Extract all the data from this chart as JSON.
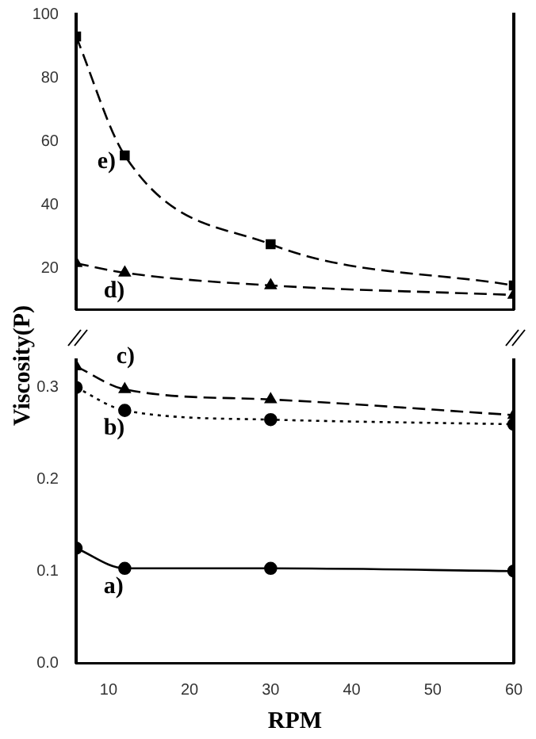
{
  "chart_data": [
    {
      "type": "line",
      "x": [
        6,
        12,
        30,
        60
      ],
      "xlim": [
        6,
        60
      ],
      "ylim": [
        7,
        100
      ],
      "yticks": [
        20,
        40,
        60,
        80,
        100
      ],
      "tick_labels": "y",
      "grid": false,
      "legend": false,
      "series": [
        {
          "name": "e)",
          "color": "#000000",
          "marker": "square",
          "line_style": "dashed",
          "values": [
            93,
            55.5,
            27.5,
            14.5
          ]
        },
        {
          "name": "d)",
          "color": "#000000",
          "marker": "triangle",
          "line_style": "dashed",
          "values": [
            21.5,
            18.5,
            14.5,
            11.5
          ]
        }
      ]
    },
    {
      "type": "line",
      "x": [
        6,
        12,
        30,
        60
      ],
      "xlim": [
        6,
        60
      ],
      "xticks": [
        10,
        20,
        30,
        40,
        50,
        60
      ],
      "ylim": [
        0,
        0.33
      ],
      "yticks": [
        {
          "value": 0,
          "label": "0.0"
        },
        0.1,
        0.2,
        0.3
      ],
      "xlabel": "RPM",
      "ylabel": "Viscosity(P)",
      "grid": false,
      "legend": false,
      "series": [
        {
          "name": "c)",
          "color": "#000000",
          "marker": "triangle",
          "line_style": "dashed",
          "values": [
            0.323,
            0.298,
            0.287,
            0.27
          ]
        },
        {
          "name": "b)",
          "color": "#000000",
          "marker": "circle",
          "line_style": "dotted",
          "values": [
            0.3,
            0.275,
            0.265,
            0.26
          ]
        },
        {
          "name": "a)",
          "color": "#000000",
          "marker": "circle",
          "line_style": "solid",
          "values": [
            0.125,
            0.103,
            0.103,
            0.1
          ]
        }
      ]
    }
  ]
}
